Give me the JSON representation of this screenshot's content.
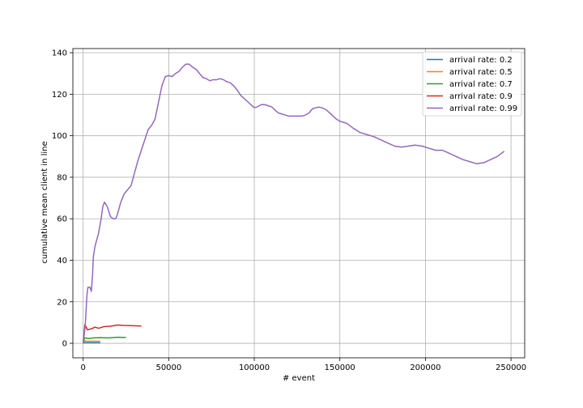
{
  "chart_data": {
    "type": "line",
    "title": "",
    "xlabel": "# event",
    "ylabel": "cumulative mean client in line",
    "xlim": [
      -6000,
      258000
    ],
    "ylim": [
      -7,
      142
    ],
    "xticks": [
      0,
      50000,
      100000,
      150000,
      200000,
      250000
    ],
    "xtick_labels": [
      "0",
      "50000",
      "100000",
      "150000",
      "200000",
      "250000"
    ],
    "yticks": [
      0,
      20,
      40,
      60,
      80,
      100,
      120,
      140
    ],
    "ytick_labels": [
      "0",
      "20",
      "40",
      "60",
      "80",
      "100",
      "120",
      "140"
    ],
    "grid": true,
    "legend_position": "top-right",
    "series": [
      {
        "name": "arrival rate: 0.2",
        "color": "#1f77b4",
        "points": [
          [
            0,
            0
          ],
          [
            500,
            0.3
          ],
          [
            2000,
            0.25
          ],
          [
            5000,
            0.26
          ],
          [
            10000,
            0.25
          ]
        ]
      },
      {
        "name": "arrival rate: 0.5",
        "color": "#ff7f0e",
        "points": [
          [
            0,
            0
          ],
          [
            500,
            1.2
          ],
          [
            2000,
            1.0
          ],
          [
            5000,
            1.0
          ],
          [
            10000,
            1.0
          ]
        ]
      },
      {
        "name": "arrival rate: 0.7",
        "color": "#2ca02c",
        "points": [
          [
            0,
            0
          ],
          [
            800,
            2.6
          ],
          [
            3000,
            2.3
          ],
          [
            6000,
            2.6
          ],
          [
            10000,
            2.7
          ],
          [
            15000,
            2.6
          ],
          [
            20000,
            2.9
          ],
          [
            25000,
            2.8
          ]
        ]
      },
      {
        "name": "arrival rate: 0.9",
        "color": "#d62728",
        "points": [
          [
            0,
            0
          ],
          [
            1000,
            9.0
          ],
          [
            2500,
            6.5
          ],
          [
            5000,
            7.0
          ],
          [
            7000,
            7.8
          ],
          [
            9000,
            7.2
          ],
          [
            12000,
            8.0
          ],
          [
            16000,
            8.2
          ],
          [
            20000,
            8.8
          ],
          [
            24000,
            8.6
          ],
          [
            28000,
            8.5
          ],
          [
            34000,
            8.3
          ]
        ]
      },
      {
        "name": "arrival rate: 0.99",
        "color": "#9467bd",
        "points": [
          [
            0,
            0
          ],
          [
            1200,
            8
          ],
          [
            2200,
            23
          ],
          [
            2800,
            27
          ],
          [
            4000,
            27
          ],
          [
            4800,
            25
          ],
          [
            5500,
            33
          ],
          [
            6000,
            42
          ],
          [
            7000,
            47
          ],
          [
            9000,
            53
          ],
          [
            10500,
            60
          ],
          [
            11500,
            66
          ],
          [
            12500,
            68
          ],
          [
            14000,
            66
          ],
          [
            16000,
            61
          ],
          [
            17500,
            60
          ],
          [
            19000,
            60
          ],
          [
            20000,
            62
          ],
          [
            22000,
            68
          ],
          [
            24000,
            72
          ],
          [
            26000,
            74
          ],
          [
            28000,
            76
          ],
          [
            30000,
            82
          ],
          [
            32000,
            88
          ],
          [
            34000,
            93
          ],
          [
            36000,
            98
          ],
          [
            38000,
            103
          ],
          [
            40000,
            105
          ],
          [
            42000,
            108
          ],
          [
            44000,
            116
          ],
          [
            46000,
            124
          ],
          [
            48000,
            128.5
          ],
          [
            50000,
            129
          ],
          [
            52000,
            128.5
          ],
          [
            54000,
            130
          ],
          [
            56000,
            131
          ],
          [
            58000,
            133
          ],
          [
            60000,
            134.5
          ],
          [
            62000,
            134.5
          ],
          [
            64000,
            133
          ],
          [
            66000,
            132
          ],
          [
            68000,
            130
          ],
          [
            70000,
            128
          ],
          [
            72000,
            127.5
          ],
          [
            74000,
            126.5
          ],
          [
            76000,
            127
          ],
          [
            78000,
            127
          ],
          [
            80000,
            127.5
          ],
          [
            82000,
            127
          ],
          [
            84000,
            126
          ],
          [
            86000,
            125.5
          ],
          [
            88000,
            124
          ],
          [
            90000,
            122
          ],
          [
            92000,
            119.5
          ],
          [
            94000,
            118
          ],
          [
            96000,
            116.5
          ],
          [
            98000,
            115
          ],
          [
            100000,
            113.5
          ],
          [
            102000,
            114
          ],
          [
            104000,
            115
          ],
          [
            106000,
            115
          ],
          [
            108000,
            114.5
          ],
          [
            110000,
            114
          ],
          [
            112000,
            112.5
          ],
          [
            114000,
            111
          ],
          [
            116000,
            110.5
          ],
          [
            118000,
            110
          ],
          [
            120000,
            109.5
          ],
          [
            122000,
            109.5
          ],
          [
            124000,
            109.5
          ],
          [
            126000,
            109.5
          ],
          [
            128000,
            109.5
          ],
          [
            130000,
            110
          ],
          [
            132000,
            111
          ],
          [
            134000,
            113
          ],
          [
            136000,
            113.5
          ],
          [
            138000,
            113.8
          ],
          [
            140000,
            113.3
          ],
          [
            142000,
            112.5
          ],
          [
            144000,
            111
          ],
          [
            146000,
            109.5
          ],
          [
            148000,
            108
          ],
          [
            150000,
            107
          ],
          [
            154000,
            106
          ],
          [
            158000,
            103.5
          ],
          [
            162000,
            101.5
          ],
          [
            166000,
            100.5
          ],
          [
            170000,
            99.5
          ],
          [
            174000,
            98
          ],
          [
            178000,
            96.5
          ],
          [
            182000,
            95
          ],
          [
            186000,
            94.5
          ],
          [
            190000,
            95
          ],
          [
            194000,
            95.5
          ],
          [
            198000,
            95
          ],
          [
            202000,
            94
          ],
          [
            206000,
            93
          ],
          [
            210000,
            93
          ],
          [
            214000,
            91.5
          ],
          [
            218000,
            90
          ],
          [
            222000,
            88.5
          ],
          [
            226000,
            87.5
          ],
          [
            230000,
            86.5
          ],
          [
            234000,
            87
          ],
          [
            238000,
            88.5
          ],
          [
            242000,
            90
          ],
          [
            246000,
            92.5
          ]
        ]
      }
    ]
  }
}
